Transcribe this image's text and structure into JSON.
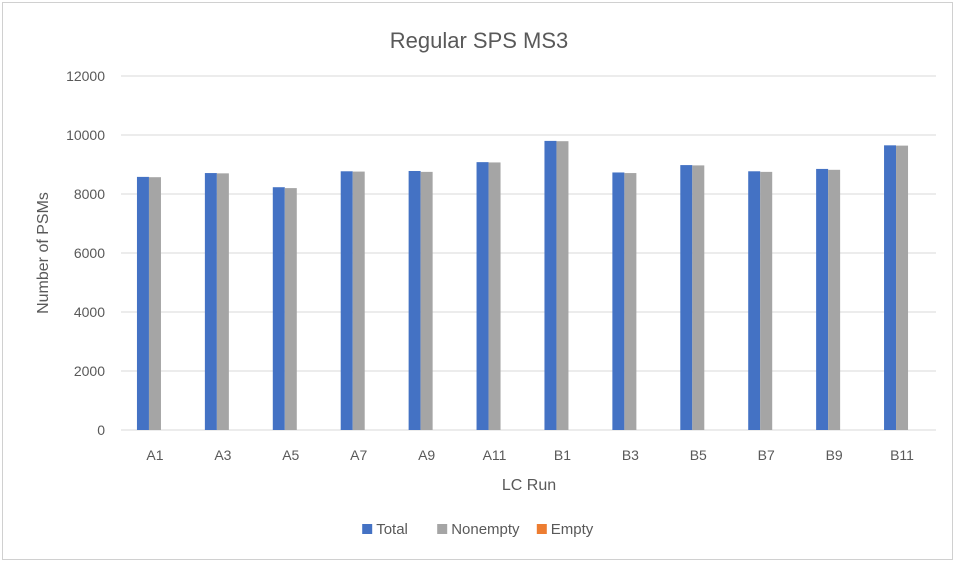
{
  "chart_data": {
    "type": "bar",
    "title": "Regular SPS MS3",
    "xlabel": "LC Run",
    "ylabel": "Number of PSMs",
    "ylim": [
      0,
      12000
    ],
    "yticks": [
      0,
      2000,
      4000,
      6000,
      8000,
      10000,
      12000
    ],
    "grid": true,
    "legend_position": "bottom",
    "categories": [
      "A1",
      "A3",
      "A5",
      "A7",
      "A9",
      "A11",
      "B1",
      "B3",
      "B5",
      "B7",
      "B9",
      "B11"
    ],
    "series": [
      {
        "name": "Total",
        "color": "#4472C4",
        "values": [
          8580,
          8710,
          8230,
          8770,
          8780,
          9080,
          9800,
          8730,
          8980,
          8770,
          8850,
          9650
        ]
      },
      {
        "name": "Nonempty",
        "color": "#A5A5A5",
        "values": [
          8570,
          8700,
          8200,
          8760,
          8750,
          9070,
          9790,
          8710,
          8970,
          8750,
          8820,
          9640
        ]
      },
      {
        "name": "Empty",
        "color": "#ED7D31",
        "values": [
          0,
          0,
          0,
          0,
          0,
          0,
          0,
          0,
          0,
          0,
          0,
          0
        ]
      }
    ]
  }
}
